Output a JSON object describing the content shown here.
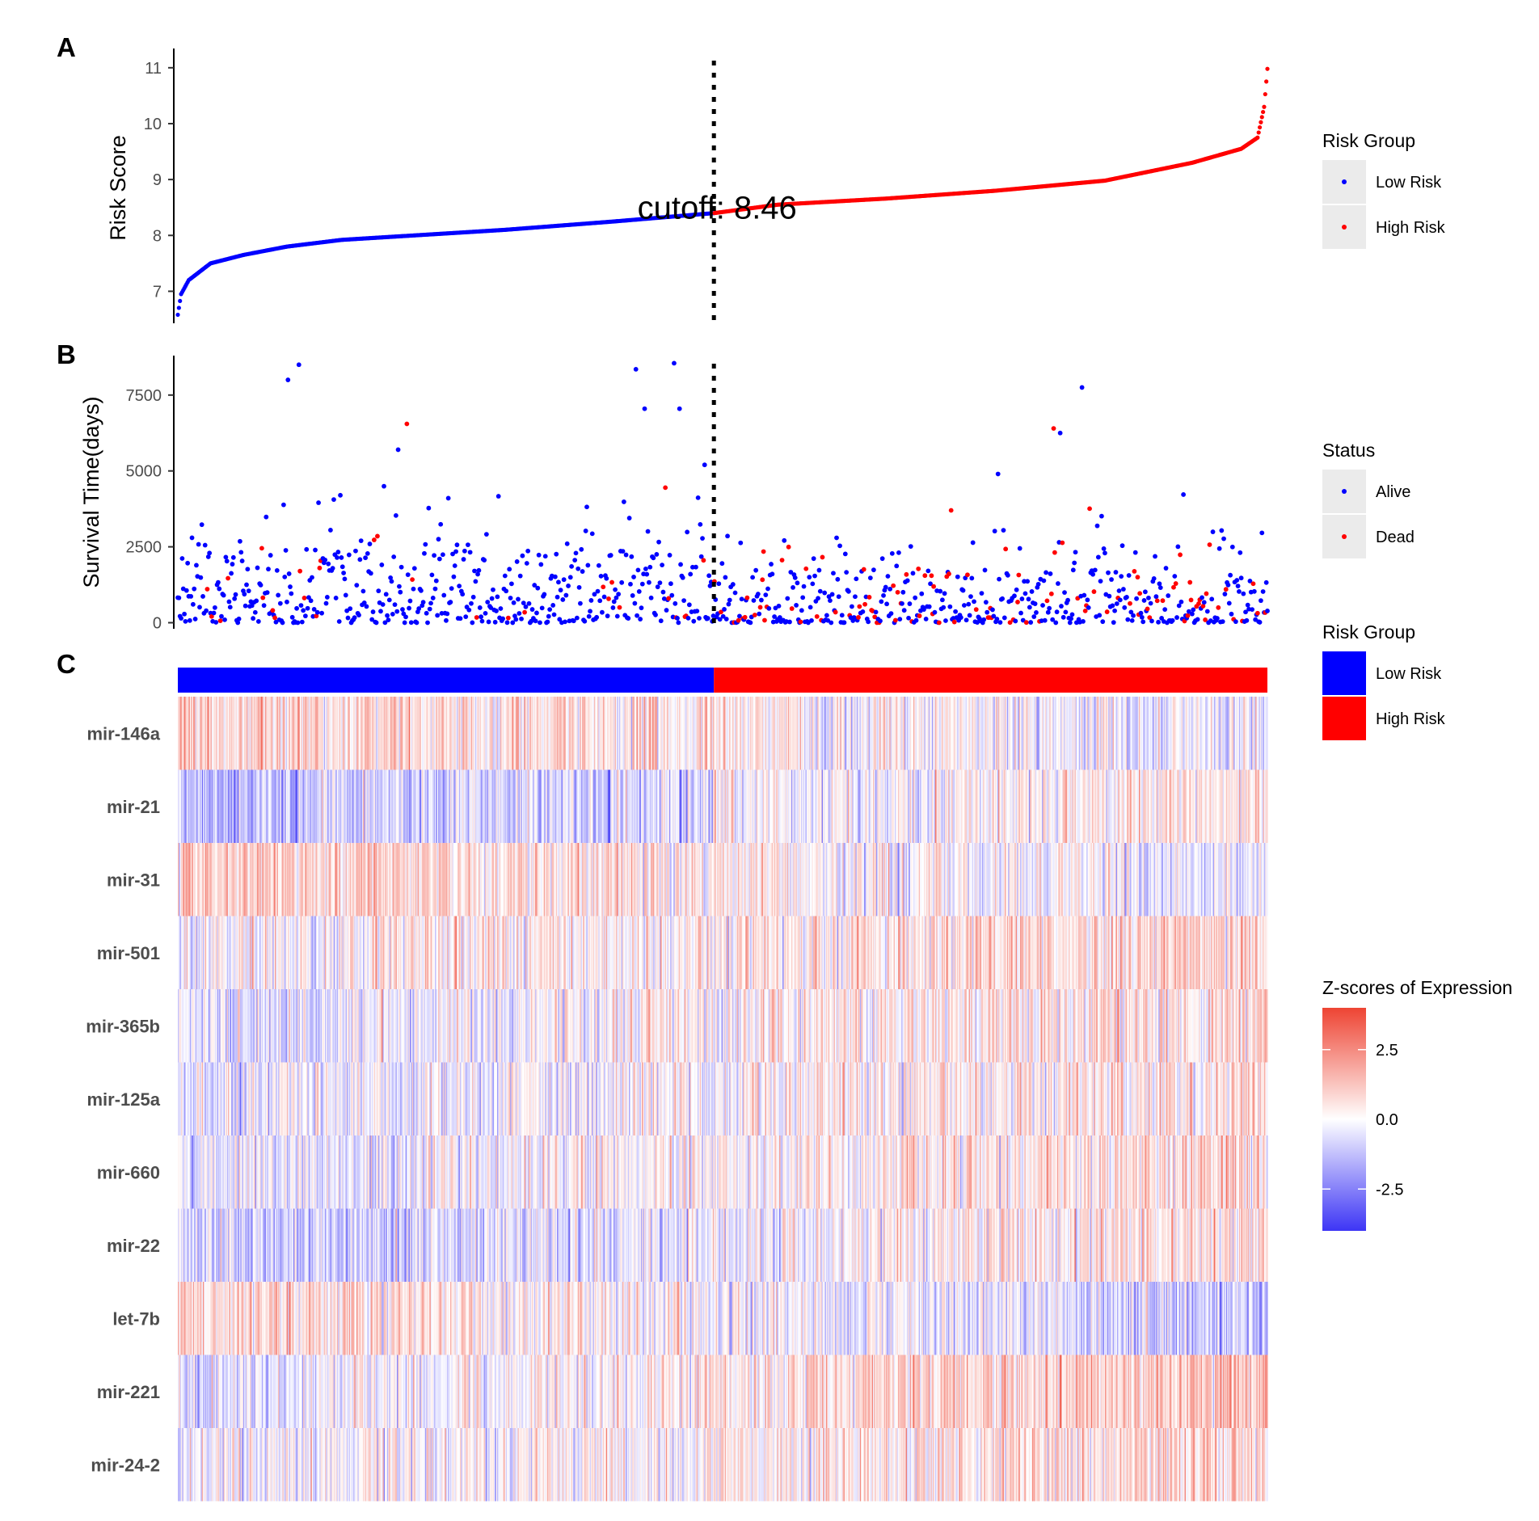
{
  "panels": {
    "a": "A",
    "b": "B",
    "c": "C"
  },
  "chart_data": [
    {
      "panel": "A",
      "type": "scatter",
      "title": "",
      "xlabel": "",
      "ylabel": "Risk Score",
      "ylim": [
        6.5,
        11.2
      ],
      "yticks": [
        7,
        8,
        9,
        10,
        11
      ],
      "n_patients": 1000,
      "cutoff_index": 492,
      "cutoff_value": 8.46,
      "cutoff_label": "cutoff: 8.46",
      "risk_curve_anchor_points": {
        "rank": [
          0,
          3,
          10,
          30,
          60,
          100,
          150,
          200,
          300,
          400,
          492,
          550,
          650,
          750,
          850,
          930,
          975,
          990,
          996,
          999
        ],
        "score": [
          6.58,
          6.95,
          7.2,
          7.5,
          7.65,
          7.8,
          7.92,
          7.98,
          8.1,
          8.25,
          8.4,
          8.55,
          8.66,
          8.8,
          8.98,
          9.3,
          9.55,
          9.75,
          10.3,
          10.98
        ]
      },
      "series": [
        {
          "name": "Low Risk",
          "color": "#0000ff",
          "points": "ranks 0-491"
        },
        {
          "name": "High Risk",
          "color": "#ff0000",
          "points": "ranks 492-999"
        }
      ],
      "legend": {
        "title": "Risk Group",
        "entries": [
          "Low Risk",
          "High Risk"
        ],
        "colors": [
          "#0000ff",
          "#ff0000"
        ],
        "position": "right"
      }
    },
    {
      "panel": "B",
      "type": "scatter",
      "title": "",
      "xlabel": "",
      "ylabel": "Survival Time(days)",
      "ylim": [
        -200,
        8800
      ],
      "yticks": [
        0,
        2500,
        5000,
        7500
      ],
      "n_patients": 1000,
      "cutoff_index": 492,
      "dead_fraction_low_risk": 0.06,
      "dead_fraction_high_risk": 0.2,
      "notable_points": {
        "rank": [
          101,
          111,
          210,
          420,
          455,
          483,
          460,
          428,
          447,
          752,
          829,
          809,
          803,
          202
        ],
        "days": [
          8000,
          8500,
          6550,
          8350,
          8550,
          5200,
          7050,
          7050,
          4450,
          4900,
          7750,
          6250,
          6400,
          5700
        ],
        "status": [
          "Alive",
          "Alive",
          "Dead",
          "Alive",
          "Alive",
          "Alive",
          "Alive",
          "Alive",
          "Dead",
          "Alive",
          "Alive",
          "Alive",
          "Dead",
          "Alive"
        ]
      },
      "series": [
        {
          "name": "Alive",
          "color": "#0000ff"
        },
        {
          "name": "Dead",
          "color": "#ff0000"
        }
      ],
      "legend": {
        "title": "Status",
        "entries": [
          "Alive",
          "Dead"
        ],
        "colors": [
          "#0000ff",
          "#ff0000"
        ],
        "position": "right"
      }
    },
    {
      "panel": "C",
      "type": "heatmap",
      "title": "",
      "rows": [
        "mir-146a",
        "mir-21",
        "mir-31",
        "mir-501",
        "mir-365b",
        "mir-125a",
        "mir-660",
        "mir-22",
        "let-7b",
        "mir-221",
        "mir-24-2"
      ],
      "row_trend_low_to_high_risk": [
        [
          1.0,
          -0.4
        ],
        [
          -1.4,
          0.6
        ],
        [
          1.1,
          -0.5
        ],
        [
          0.0,
          0.9
        ],
        [
          -0.6,
          0.8
        ],
        [
          -0.5,
          0.7
        ],
        [
          -0.5,
          0.8
        ],
        [
          -1.2,
          0.7
        ],
        [
          1.0,
          -1.1
        ],
        [
          -0.6,
          1.3
        ],
        [
          -0.4,
          0.9
        ]
      ],
      "columns": 1000,
      "annotation_bar": {
        "groups": [
          "Low Risk",
          "High Risk"
        ],
        "split_index": 492,
        "colors": [
          "#0000ff",
          "#ff0000"
        ]
      },
      "color_scale": {
        "title": "Z-scores of Expression",
        "min": -4,
        "max": 4,
        "low": "#0000ff",
        "mid": "#ffffff",
        "high": "#ff0000",
        "ticks": [
          "2.5",
          "0.0",
          "-2.5"
        ]
      },
      "legend": {
        "title": "Risk Group",
        "entries": [
          "Low Risk",
          "High Risk"
        ],
        "colors": [
          "#0000ff",
          "#ff0000"
        ],
        "position": "right"
      }
    }
  ]
}
